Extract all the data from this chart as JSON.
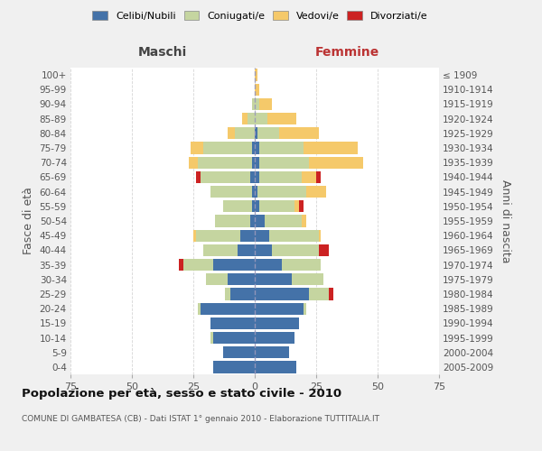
{
  "age_groups": [
    "0-4",
    "5-9",
    "10-14",
    "15-19",
    "20-24",
    "25-29",
    "30-34",
    "35-39",
    "40-44",
    "45-49",
    "50-54",
    "55-59",
    "60-64",
    "65-69",
    "70-74",
    "75-79",
    "80-84",
    "85-89",
    "90-94",
    "95-99",
    "100+"
  ],
  "birth_years": [
    "2005-2009",
    "2000-2004",
    "1995-1999",
    "1990-1994",
    "1985-1989",
    "1980-1984",
    "1975-1979",
    "1970-1974",
    "1965-1969",
    "1960-1964",
    "1955-1959",
    "1950-1954",
    "1945-1949",
    "1940-1944",
    "1935-1939",
    "1930-1934",
    "1925-1929",
    "1920-1924",
    "1915-1919",
    "1910-1914",
    "≤ 1909"
  ],
  "male": {
    "celibi": [
      17,
      13,
      17,
      18,
      22,
      10,
      11,
      17,
      7,
      6,
      2,
      1,
      1,
      2,
      1,
      1,
      0,
      0,
      0,
      0,
      0
    ],
    "coniugati": [
      0,
      0,
      1,
      0,
      1,
      2,
      9,
      12,
      14,
      18,
      14,
      12,
      17,
      20,
      22,
      20,
      8,
      3,
      1,
      0,
      0
    ],
    "vedovi": [
      0,
      0,
      0,
      0,
      0,
      0,
      0,
      0,
      0,
      1,
      0,
      0,
      0,
      0,
      4,
      5,
      3,
      2,
      0,
      0,
      0
    ],
    "divorziati": [
      0,
      0,
      0,
      0,
      0,
      0,
      0,
      2,
      0,
      0,
      0,
      0,
      0,
      2,
      0,
      0,
      0,
      0,
      0,
      0,
      0
    ]
  },
  "female": {
    "nubili": [
      17,
      14,
      16,
      18,
      20,
      22,
      15,
      11,
      7,
      6,
      4,
      2,
      1,
      2,
      2,
      2,
      1,
      0,
      0,
      0,
      0
    ],
    "coniugate": [
      0,
      0,
      0,
      0,
      1,
      8,
      13,
      16,
      19,
      20,
      15,
      14,
      20,
      17,
      20,
      18,
      9,
      5,
      2,
      0,
      0
    ],
    "vedove": [
      0,
      0,
      0,
      0,
      0,
      0,
      0,
      0,
      0,
      1,
      2,
      2,
      8,
      6,
      22,
      22,
      16,
      12,
      5,
      2,
      1
    ],
    "divorziate": [
      0,
      0,
      0,
      0,
      0,
      2,
      0,
      0,
      4,
      0,
      0,
      2,
      0,
      2,
      0,
      0,
      0,
      0,
      0,
      0,
      0
    ]
  },
  "colors": {
    "celibi": "#4472a8",
    "coniugati": "#c5d5a0",
    "vedovi": "#f5c96a",
    "divorziati": "#cc2222"
  },
  "title": "Popolazione per età, sesso e stato civile - 2010",
  "subtitle": "COMUNE DI GAMBATESA (CB) - Dati ISTAT 1° gennaio 2010 - Elaborazione TUTTITALIA.IT",
  "xlabel_left": "Maschi",
  "xlabel_right": "Femmine",
  "ylabel_left": "Fasce di età",
  "ylabel_right": "Anni di nascita",
  "xlim": 75,
  "bg_color": "#f0f0f0",
  "plot_bg": "#ffffff",
  "grid_color": "#cccccc",
  "legend_labels": [
    "Celibi/Nubili",
    "Coniugati/e",
    "Vedovi/e",
    "Divorziati/e"
  ]
}
